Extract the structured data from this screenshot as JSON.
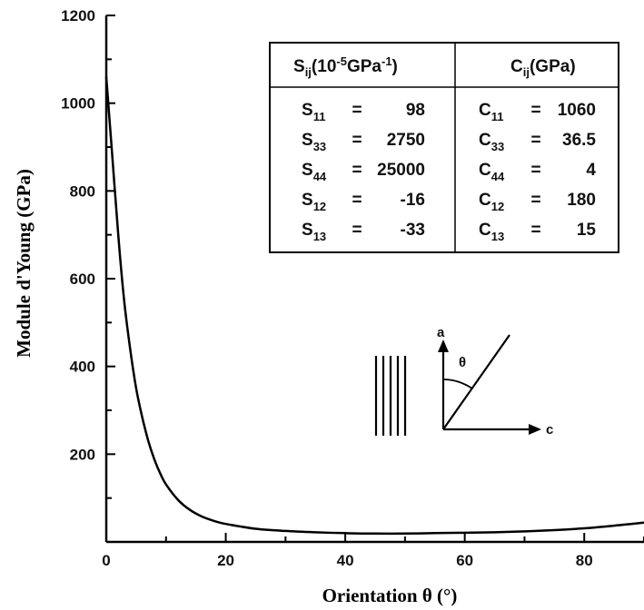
{
  "chart_data": {
    "type": "line",
    "xlabel": "Orientation θ (°)",
    "ylabel": "Module d'Young (GPa)",
    "xlim": [
      0,
      90
    ],
    "ylim": [
      0,
      1200
    ],
    "x_ticks": [
      "0",
      "20",
      "40",
      "60",
      "80"
    ],
    "y_ticks": [
      "200",
      "400",
      "600",
      "800",
      "1000",
      "1200"
    ],
    "grid": false,
    "series": [
      {
        "x": [
          0,
          1,
          2,
          3,
          4,
          5,
          6,
          7,
          8,
          9,
          10,
          12,
          14,
          16,
          18,
          20,
          25,
          30,
          35,
          40,
          45,
          50,
          55,
          60,
          65,
          70,
          75,
          80,
          85,
          90
        ],
        "values": [
          1060,
          880,
          700,
          550,
          440,
          350,
          285,
          232,
          190,
          157,
          131,
          96,
          73,
          58,
          48,
          41,
          30,
          25,
          22,
          20,
          19,
          19,
          20,
          21,
          22,
          24,
          27,
          31,
          37,
          44
        ]
      }
    ],
    "table": {
      "left_header": {
        "main": "S",
        "sub": "ij",
        "rest": "(10",
        "sup": "-5",
        "rest2": "GPa",
        "sup2": "-1",
        "end": ")"
      },
      "right_header": {
        "main": "C",
        "sub": "ij",
        "rest": "(GPa)"
      },
      "left_rows": [
        {
          "sym": "S",
          "sub": "11",
          "eq": "=",
          "val": "98"
        },
        {
          "sym": "S",
          "sub": "33",
          "eq": "=",
          "val": "2750"
        },
        {
          "sym": "S",
          "sub": "44",
          "eq": "=",
          "val": "25000"
        },
        {
          "sym": "S",
          "sub": "12",
          "eq": "=",
          "val": "-16"
        },
        {
          "sym": "S",
          "sub": "13",
          "eq": "=",
          "val": "-33"
        }
      ],
      "right_rows": [
        {
          "sym": "C",
          "sub": "11",
          "eq": "=",
          "val": "1060"
        },
        {
          "sym": "C",
          "sub": "33",
          "eq": "=",
          "val": "36.5"
        },
        {
          "sym": "C",
          "sub": "44",
          "eq": "=",
          "val": "4"
        },
        {
          "sym": "C",
          "sub": "12",
          "eq": "=",
          "val": "180"
        },
        {
          "sym": "C",
          "sub": "13",
          "eq": "=",
          "val": "15"
        }
      ]
    },
    "diagram": {
      "axis_a_label": "a",
      "axis_c_label": "c",
      "angle_label": "θ"
    }
  }
}
